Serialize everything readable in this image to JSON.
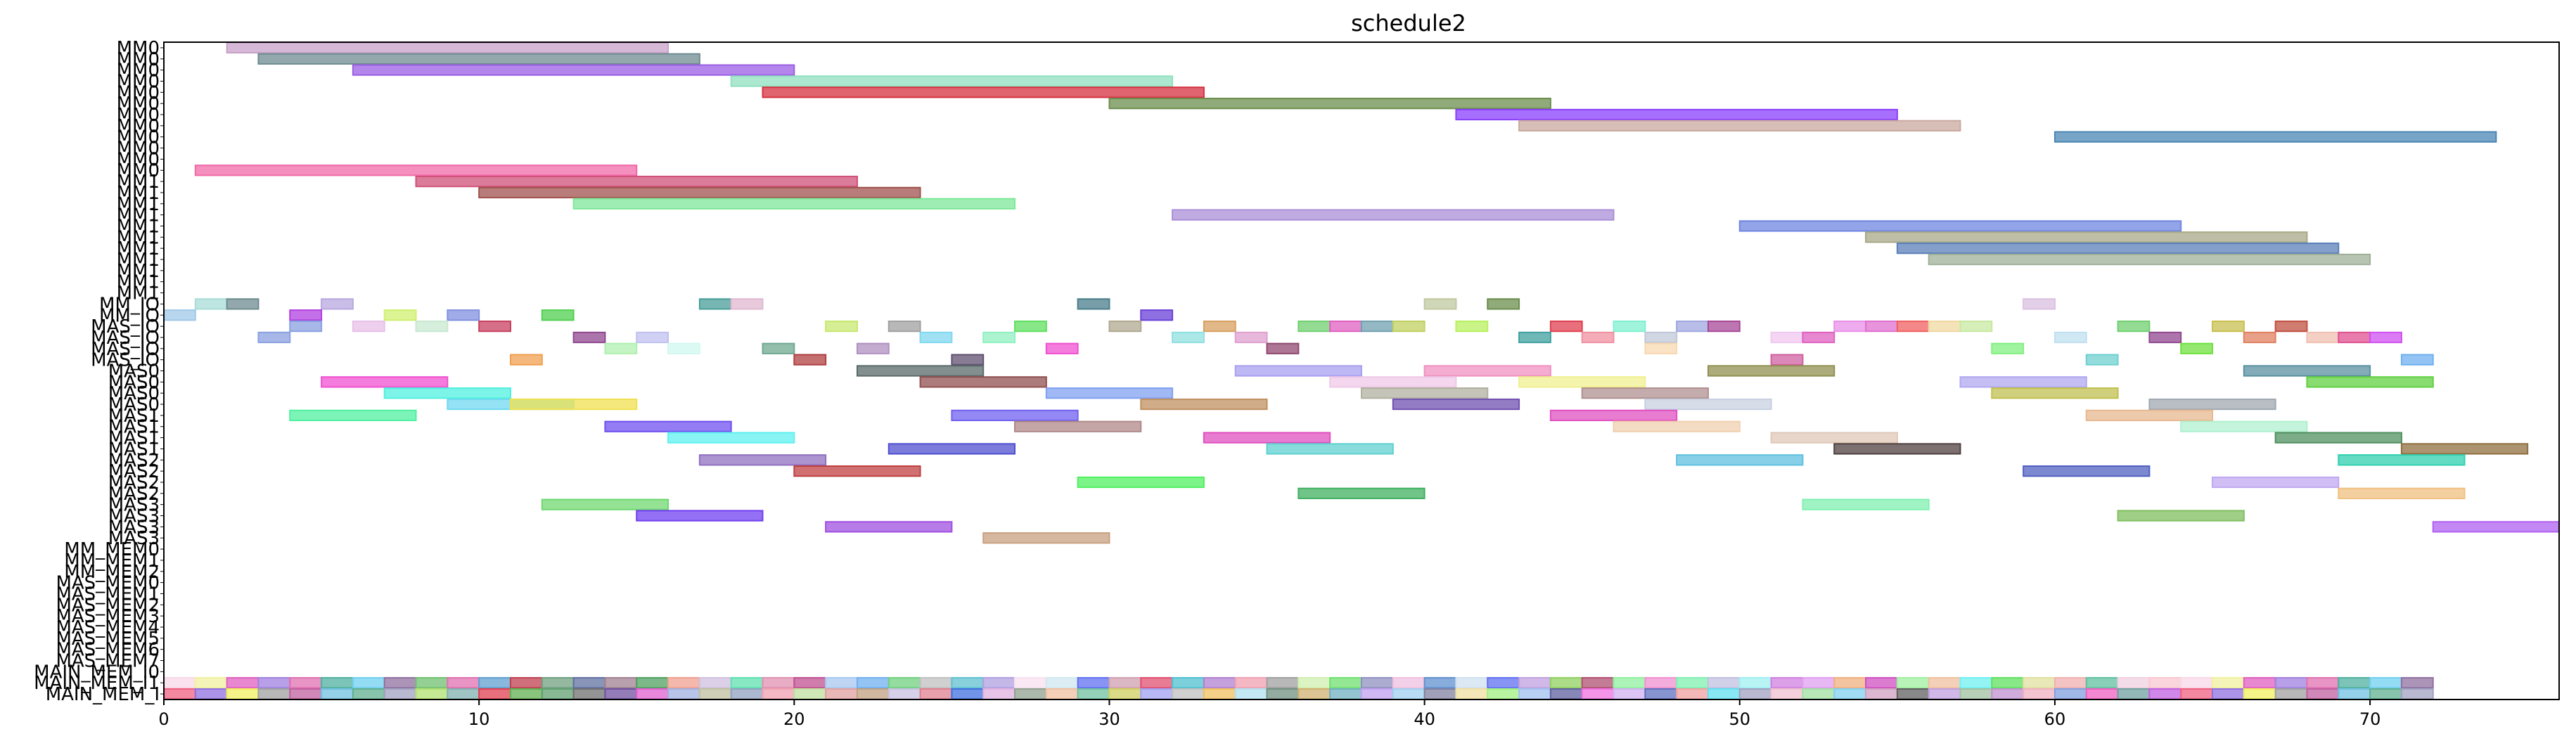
{
  "chart_data": {
    "type": "gantt",
    "title": "schedule2",
    "xlim": [
      0,
      76
    ],
    "x_ticks": [
      0,
      10,
      20,
      30,
      40,
      50,
      60,
      70
    ],
    "grid": false,
    "rows": [
      {
        "label": "MM0",
        "tasks": [
          [
            2,
            16,
            "#c8a2c8"
          ]
        ]
      },
      {
        "label": "MM0",
        "tasks": [
          [
            3,
            17,
            "#6e8b91"
          ]
        ]
      },
      {
        "label": "MM0",
        "tasks": [
          [
            6,
            20,
            "#9b5de5"
          ]
        ]
      },
      {
        "label": "MM0",
        "tasks": [
          [
            18,
            32,
            "#90e0c0"
          ]
        ]
      },
      {
        "label": "MM0",
        "tasks": [
          [
            19,
            33,
            "#d63040"
          ]
        ]
      },
      {
        "label": "MM0",
        "tasks": [
          [
            30,
            44,
            "#6b8e4e"
          ]
        ]
      },
      {
        "label": "MM0",
        "tasks": [
          [
            41,
            55,
            "#8a3ffc"
          ]
        ]
      },
      {
        "label": "MM0",
        "tasks": [
          [
            43,
            57,
            "#c9a99f"
          ]
        ]
      },
      {
        "label": "MM0",
        "tasks": [
          [
            60,
            74,
            "#4a86b4"
          ]
        ]
      },
      {
        "label": "MM0",
        "tasks": []
      },
      {
        "label": "MM0",
        "tasks": []
      },
      {
        "label": "MM0",
        "tasks": [
          [
            1,
            15,
            "#f06aa8"
          ]
        ]
      },
      {
        "label": "MM1",
        "tasks": [
          [
            8,
            22,
            "#d0507a"
          ]
        ]
      },
      {
        "label": "MM1",
        "tasks": [
          [
            10,
            24,
            "#a0524d"
          ]
        ]
      },
      {
        "label": "MM1",
        "tasks": [
          [
            13,
            27,
            "#7ee89a"
          ]
        ]
      },
      {
        "label": "MM1",
        "tasks": [
          [
            32,
            46,
            "#a98fd8"
          ]
        ]
      },
      {
        "label": "MM1",
        "tasks": [
          [
            50,
            64,
            "#6f85e0"
          ]
        ]
      },
      {
        "label": "MM1",
        "tasks": [
          [
            54,
            68,
            "#a8a888"
          ]
        ]
      },
      {
        "label": "MM1",
        "tasks": [
          [
            55,
            69,
            "#5a7fb8"
          ]
        ]
      },
      {
        "label": "MM1",
        "tasks": [
          [
            56,
            70,
            "#a0b098"
          ]
        ]
      },
      {
        "label": "MM1",
        "tasks": []
      },
      {
        "label": "MM1",
        "tasks": []
      },
      {
        "label": "MM1",
        "tasks": []
      },
      {
        "label": "MM_IO",
        "tasks": [
          [
            1,
            2,
            "#a8dcd8"
          ],
          [
            2,
            3,
            "#6e8b91"
          ],
          [
            5,
            6,
            "#b8a8e0"
          ],
          [
            17,
            18,
            "#4a9e98"
          ],
          [
            18,
            19,
            "#e0b8d0"
          ],
          [
            29,
            30,
            "#4a7e8c"
          ],
          [
            42,
            43,
            "#6b8e4e"
          ],
          [
            40,
            41,
            "#c0c8a0"
          ],
          [
            59,
            60,
            "#dac0e0"
          ]
        ]
      },
      {
        "label": "MM_IO",
        "tasks": [
          [
            0,
            1,
            "#a0c8e8"
          ],
          [
            4,
            5,
            "#b040e0"
          ],
          [
            7,
            8,
            "#d0f070"
          ],
          [
            9,
            10,
            "#8090e0"
          ],
          [
            12,
            13,
            "#50d050"
          ],
          [
            31,
            32,
            "#6a40d8"
          ]
        ]
      },
      {
        "label": "MAS_IO",
        "tasks": [
          [
            4,
            5,
            "#8aa0e0"
          ],
          [
            6,
            7,
            "#e8c0e8"
          ],
          [
            8,
            9,
            "#c8e8d0"
          ],
          [
            10,
            11,
            "#c84060"
          ],
          [
            21,
            22,
            "#c8e870"
          ],
          [
            23,
            24,
            "#a0a0a0"
          ],
          [
            27,
            28,
            "#60e060"
          ],
          [
            30,
            31,
            "#b0a890"
          ],
          [
            33,
            34,
            "#d8a060"
          ],
          [
            36,
            37,
            "#70d070"
          ],
          [
            37,
            38,
            "#e060c0"
          ],
          [
            38,
            39,
            "#70a0b0"
          ],
          [
            39,
            40,
            "#c0d060"
          ],
          [
            41,
            42,
            "#b8f060"
          ],
          [
            44,
            45,
            "#e04050"
          ],
          [
            46,
            47,
            "#80f0d0"
          ],
          [
            48,
            49,
            "#a0a8e0"
          ],
          [
            49,
            50,
            "#a84898"
          ],
          [
            53,
            54,
            "#e890e8"
          ],
          [
            54,
            55,
            "#e070d0"
          ],
          [
            55,
            56,
            "#f06060"
          ],
          [
            56,
            57,
            "#f0d8a0"
          ],
          [
            57,
            58,
            "#c8e8a0"
          ],
          [
            62,
            63,
            "#70d070"
          ],
          [
            65,
            66,
            "#c8c050"
          ],
          [
            67,
            68,
            "#c05040"
          ]
        ]
      },
      {
        "label": "MAS_IO",
        "tasks": [
          [
            3,
            4,
            "#8aa0e0"
          ],
          [
            13,
            14,
            "#904890"
          ],
          [
            15,
            16,
            "#c0c0f0"
          ],
          [
            24,
            25,
            "#80d8f0"
          ],
          [
            26,
            27,
            "#90f0c0"
          ],
          [
            32,
            33,
            "#90e0e0"
          ],
          [
            34,
            35,
            "#e0a0d0"
          ],
          [
            43,
            44,
            "#40a0a0"
          ],
          [
            45,
            46,
            "#f090a0"
          ],
          [
            47,
            48,
            "#c0c8d8"
          ],
          [
            51,
            52,
            "#f0c8f0"
          ],
          [
            52,
            53,
            "#e060c0"
          ],
          [
            60,
            61,
            "#c0e0f0"
          ],
          [
            63,
            64,
            "#904890"
          ],
          [
            66,
            67,
            "#e08060"
          ],
          [
            68,
            69,
            "#f0c0b0"
          ],
          [
            69,
            70,
            "#e05090"
          ],
          [
            70,
            71,
            "#d050f0"
          ]
        ]
      },
      {
        "label": "MAS_IO",
        "tasks": [
          [
            14,
            15,
            "#b0f0b0"
          ],
          [
            16,
            17,
            "#d0f8f0"
          ],
          [
            19,
            20,
            "#70a890"
          ],
          [
            22,
            23,
            "#b090c0"
          ],
          [
            28,
            29,
            "#f050d0"
          ],
          [
            35,
            36,
            "#904870"
          ],
          [
            47,
            48,
            "#f8d8b0"
          ],
          [
            58,
            59,
            "#80f080"
          ],
          [
            64,
            65,
            "#70e040"
          ]
        ]
      },
      {
        "label": "MAS_IO",
        "tasks": [
          [
            11,
            12,
            "#f0a050"
          ],
          [
            20,
            21,
            "#b04040"
          ],
          [
            25,
            26,
            "#605070"
          ],
          [
            51,
            52,
            "#d060a0"
          ],
          [
            61,
            62,
            "#70d0d0"
          ],
          [
            71,
            72,
            "#70b0f0"
          ]
        ]
      },
      {
        "label": "MAS0",
        "tasks": [
          [
            22,
            26,
            "#5a6a6a"
          ],
          [
            34,
            38,
            "#a8a0f0"
          ],
          [
            40,
            44,
            "#f090c0"
          ],
          [
            49,
            53,
            "#909050"
          ],
          [
            66,
            70,
            "#5a90a0"
          ]
        ]
      },
      {
        "label": "MAS0",
        "tasks": [
          [
            5,
            9,
            "#f050d0"
          ],
          [
            24,
            28,
            "#905050"
          ],
          [
            37,
            41,
            "#f0c8e8"
          ],
          [
            43,
            47,
            "#f0f090"
          ],
          [
            57,
            61,
            "#b0a8f0"
          ],
          [
            68,
            72,
            "#60d040"
          ]
        ]
      },
      {
        "label": "MAS0",
        "tasks": [
          [
            7,
            11,
            "#50f0e0"
          ],
          [
            28,
            32,
            "#80a0f0"
          ],
          [
            38,
            42,
            "#b0b0a0"
          ],
          [
            45,
            49,
            "#b09090"
          ],
          [
            58,
            62,
            "#c0c050"
          ]
        ]
      },
      {
        "label": "MAS0",
        "tasks": [
          [
            9,
            13,
            "#70d8f0"
          ],
          [
            11,
            15,
            "#f0e050"
          ],
          [
            31,
            35,
            "#c09060"
          ],
          [
            39,
            43,
            "#7050b0"
          ],
          [
            47,
            51,
            "#c8d0e0"
          ],
          [
            63,
            67,
            "#a0a8b0"
          ]
        ]
      },
      {
        "label": "MAS1",
        "tasks": [
          [
            4,
            8,
            "#50f0a0"
          ],
          [
            25,
            29,
            "#7060f0"
          ],
          [
            44,
            48,
            "#e050c0"
          ],
          [
            61,
            65,
            "#e8b890"
          ]
        ]
      },
      {
        "label": "MAS1",
        "tasks": [
          [
            14,
            18,
            "#7050f0"
          ],
          [
            27,
            31,
            "#b08888"
          ],
          [
            46,
            50,
            "#f0d0b0"
          ],
          [
            64,
            68,
            "#b0f0d0"
          ]
        ]
      },
      {
        "label": "MAS1",
        "tasks": [
          [
            16,
            20,
            "#60f0f0"
          ],
          [
            33,
            37,
            "#e050c0"
          ],
          [
            51,
            55,
            "#e0c8b8"
          ],
          [
            67,
            71,
            "#509060"
          ]
        ]
      },
      {
        "label": "MAS1",
        "tasks": [
          [
            23,
            27,
            "#5050d0"
          ],
          [
            35,
            39,
            "#60d0d0"
          ],
          [
            53,
            57,
            "#504040"
          ],
          [
            71,
            75,
            "#907040"
          ]
        ]
      },
      {
        "label": "MAS2",
        "tasks": [
          [
            17,
            21,
            "#9070c0"
          ],
          [
            48,
            52,
            "#60c0e0"
          ],
          [
            69,
            73,
            "#30d0b0"
          ]
        ]
      },
      {
        "label": "MAS2",
        "tasks": [
          [
            20,
            24,
            "#c04040"
          ],
          [
            59,
            63,
            "#5060c0"
          ]
        ]
      },
      {
        "label": "MAS2",
        "tasks": [
          [
            29,
            33,
            "#50f060"
          ],
          [
            65,
            69,
            "#c0a8f0"
          ]
        ]
      },
      {
        "label": "MAS2",
        "tasks": [
          [
            36,
            40,
            "#40b060"
          ],
          [
            69,
            73,
            "#f0c080"
          ]
        ]
      },
      {
        "label": "MAS3",
        "tasks": [
          [
            12,
            16,
            "#70d870"
          ],
          [
            52,
            56,
            "#80f0b0"
          ]
        ]
      },
      {
        "label": "MAS3",
        "tasks": [
          [
            15,
            19,
            "#7040f0"
          ],
          [
            62,
            66,
            "#80c060"
          ]
        ]
      },
      {
        "label": "MAS3",
        "tasks": [
          [
            21,
            25,
            "#a050e0"
          ],
          [
            72,
            76,
            "#b060f0"
          ]
        ]
      },
      {
        "label": "MAS3",
        "tasks": [
          [
            26,
            30,
            "#c8a080"
          ]
        ]
      },
      {
        "label": "MM_MEM0",
        "tasks": []
      },
      {
        "label": "MM_MEM1",
        "tasks": []
      },
      {
        "label": "MM_MEM2",
        "tasks": []
      },
      {
        "label": "MAS_MEM0",
        "tasks": []
      },
      {
        "label": "MAS_MEM1",
        "tasks": []
      },
      {
        "label": "MAS_MEM2",
        "tasks": []
      },
      {
        "label": "MAS_MEM3",
        "tasks": []
      },
      {
        "label": "MAS_MEM4",
        "tasks": []
      },
      {
        "label": "MAS_MEM5",
        "tasks": []
      },
      {
        "label": "MAS_MEM6",
        "tasks": []
      },
      {
        "label": "MAS_MEM7",
        "tasks": []
      },
      {
        "label": "MAIN_MEM_I0",
        "tasks": []
      },
      {
        "label": "MAIN_MEM_I1",
        "tasks": "band1"
      },
      {
        "label": "MAIN_MEM_I",
        "tasks": "band2"
      }
    ],
    "band_colors_1": [
      "#f8d8e8",
      "#f0f0a0",
      "#e060c0",
      "#a080e0",
      "#e070b0",
      "#50b0a0",
      "#70d0f0",
      "#9070a0",
      "#70c070",
      "#e070b0",
      "#60a0d0",
      "#c04050",
      "#70a080",
      "#6070a0",
      "#a08090",
      "#50a060",
      "#f0a090",
      "#d0c0e0",
      "#60e0b0",
      "#e090b0",
      "#c05090",
      "#a8c8f0",
      "#70b0f0",
      "#70d080",
      "#c0c0c0",
      "#60c0d0",
      "#b0a0e0",
      "#f8e0f0",
      "#d0e8f0",
      "#6070f0",
      "#d0a0b0",
      "#e05070",
      "#50c0d0",
      "#b080d0",
      "#f0a0b0",
      "#a0a0a0",
      "#d0f0b0",
      "#70e070",
      "#9090c0",
      "#f0c0e0",
      "#6090d0",
      "#d0e0f0",
      "#6070f0",
      "#c0a0e0",
      "#90d060",
      "#b05070",
      "#90f0a0",
      "#f090d0",
      "#80f0b0",
      "#c0c0e0",
      "#a0f0f0",
      "#d080e0",
      "#e0a0f0",
      "#f0b080",
      "#d050c0",
      "#a0f0a0",
      "#f0c0a0",
      "#70f0f0",
      "#60e060",
      "#e0e0a0",
      "#f0b0b0",
      "#60c0a0",
      "#f0d0e0",
      "#f8c8d0"
    ],
    "band_colors_2": [
      "#f06080",
      "#9070e0",
      "#f0f060",
      "#a0a0a0",
      "#c060a0",
      "#70c0e0",
      "#60b090",
      "#a0a0c0",
      "#b0e070",
      "#80b0b0",
      "#e04050",
      "#60b050",
      "#60a070",
      "#707070",
      "#7050a0",
      "#e060d0",
      "#a0b0e0",
      "#c0c0a0",
      "#90a0c0",
      "#f0a0b0",
      "#c0e0a0",
      "#e0a0a0",
      "#c0a080",
      "#c8c0e0",
      "#e08090",
      "#4070e0",
      "#e0b0e0",
      "#90a090",
      "#f0c0a0",
      "#70c0a0",
      "#d0d060",
      "#a0a0f0",
      "#c0c0c0",
      "#f0c060",
      "#b0e0f0",
      "#709080",
      "#d0b070",
      "#70b0c0",
      "#c0a0f0",
      "#a0d0f0",
      "#8080a0",
      "#f0e0a0",
      "#a0f080",
      "#a0c0f0",
      "#6060a0",
      "#f070e0",
      "#d0b0f0",
      "#6070c0",
      "#f0a0a0",
      "#60e0f0",
      "#a0a0c0",
      "#f0c0d0",
      "#a0e0a0",
      "#80d0f0",
      "#d0a0c0",
      "#606060",
      "#c0a0e0",
      "#a0c0a0",
      "#c090d0",
      "#f0b0c0",
      "#80a0e0",
      "#f060c0",
      "#70a0a0",
      "#c060e0"
    ]
  }
}
